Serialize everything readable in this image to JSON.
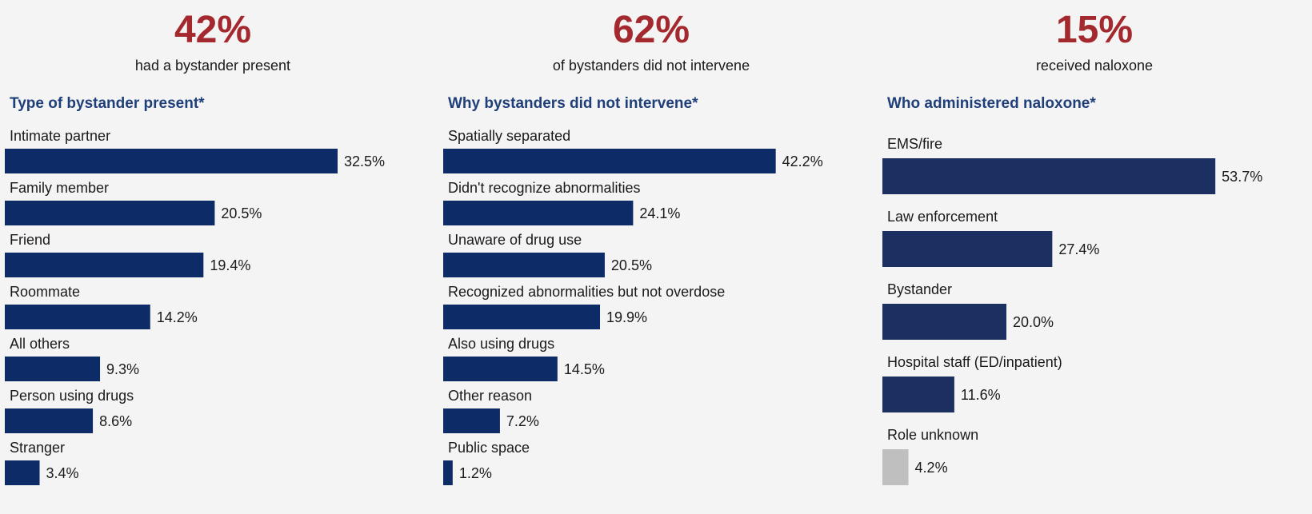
{
  "colors": {
    "stat": "#a3292e",
    "title": "#1f3f7a",
    "bar_panel_1": "#0d2b66",
    "bar_panel_2": "#1b3060",
    "bar_unknown": "#bfbfbf",
    "text": "#1a1a1a"
  },
  "stats": [
    {
      "value": "42%",
      "caption": "had a bystander present"
    },
    {
      "value": "62%",
      "caption": "of bystanders did not intervene"
    },
    {
      "value": "15%",
      "caption": "received naloxone"
    }
  ],
  "chart_data": [
    {
      "type": "bar",
      "orientation": "horizontal",
      "title": "Type of bystander present*",
      "categories": [
        "Intimate partner",
        "Family member",
        "Friend",
        "Roommate",
        "All others",
        "Person using drugs",
        "Stranger"
      ],
      "values": [
        32.5,
        20.5,
        19.4,
        14.2,
        9.3,
        8.6,
        3.4
      ],
      "value_labels": [
        "32.5%",
        "20.5%",
        "19.4%",
        "14.2%",
        "9.3%",
        "8.6%",
        "3.4%"
      ],
      "unit": "%",
      "bar_colors": [
        "#0d2b66",
        "#0d2b66",
        "#0d2b66",
        "#0d2b66",
        "#0d2b66",
        "#0d2b66",
        "#0d2b66"
      ]
    },
    {
      "type": "bar",
      "orientation": "horizontal",
      "title": "Why bystanders did not intervene*",
      "categories": [
        "Spatially separated",
        "Didn't recognize abnormalities",
        "Unaware of drug use",
        "Recognized abnormalities but not overdose",
        "Also using drugs",
        "Other reason",
        "Public space"
      ],
      "values": [
        42.2,
        24.1,
        20.5,
        19.9,
        14.5,
        7.2,
        1.2
      ],
      "value_labels": [
        "42.2%",
        "24.1%",
        "20.5%",
        "19.9%",
        "14.5%",
        "7.2%",
        "1.2%"
      ],
      "unit": "%",
      "bar_colors": [
        "#0d2b66",
        "#0d2b66",
        "#0d2b66",
        "#0d2b66",
        "#0d2b66",
        "#0d2b66",
        "#0d2b66"
      ]
    },
    {
      "type": "bar",
      "orientation": "horizontal",
      "title": "Who administered naloxone*",
      "categories": [
        "EMS/fire",
        "Law enforcement",
        "Bystander",
        "Hospital staff (ED/inpatient)",
        "Role unknown"
      ],
      "values": [
        53.7,
        27.4,
        20.0,
        11.6,
        4.2
      ],
      "value_labels": [
        "53.7%",
        "27.4%",
        "20.0%",
        "11.6%",
        "4.2%"
      ],
      "unit": "%",
      "bar_colors": [
        "#1b3060",
        "#1b3060",
        "#1b3060",
        "#1b3060",
        "#bfbfbf"
      ]
    }
  ]
}
